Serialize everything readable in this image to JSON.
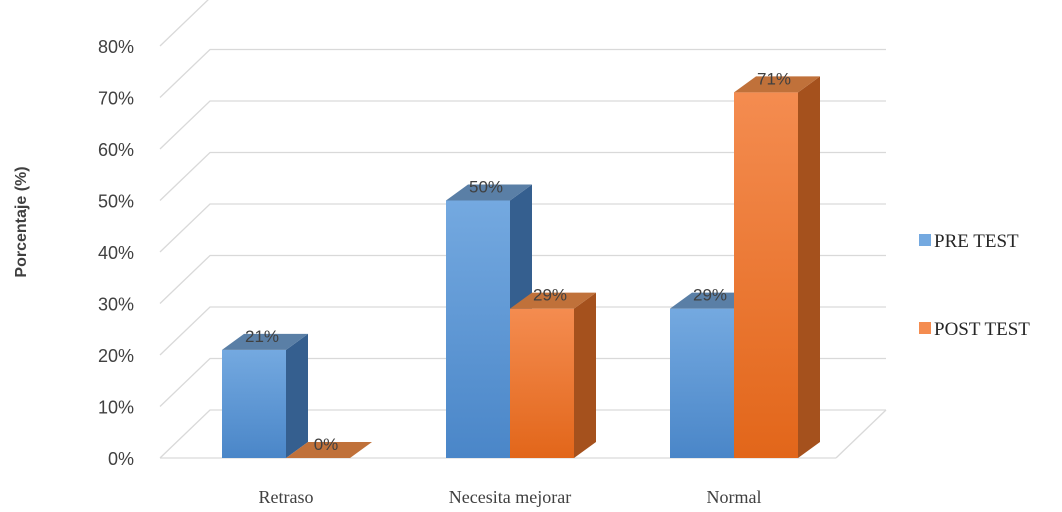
{
  "chart_data": {
    "type": "bar",
    "categories": [
      "Retraso",
      "Necesita mejorar",
      "Normal"
    ],
    "series": [
      {
        "name": "PRE TEST",
        "values": [
          21,
          50,
          29
        ],
        "labels": [
          "21%",
          "50%",
          "29%"
        ]
      },
      {
        "name": "POST TEST",
        "values": [
          0,
          29,
          71
        ],
        "labels": [
          "0%",
          "29%",
          "71%"
        ]
      }
    ],
    "ylabel": "Porcentaje (%)",
    "ylim": [
      0,
      80
    ],
    "yticks": [
      "0%",
      "10%",
      "20%",
      "30%",
      "40%",
      "50%",
      "60%",
      "70%",
      "80%"
    ],
    "grid": true,
    "legend_position": "right",
    "three_d": true
  },
  "colors": {
    "pre_front_top": "#74a9e0",
    "pre_front_bottom": "#4a86c8",
    "pre_side": "#355f8f",
    "pre_top": "#5a7fa6",
    "post_front_top": "#f48c50",
    "post_front_bottom": "#e2661a",
    "post_side": "#a5511d",
    "post_top": "#c0713a",
    "grid": "#d9d9d9"
  }
}
